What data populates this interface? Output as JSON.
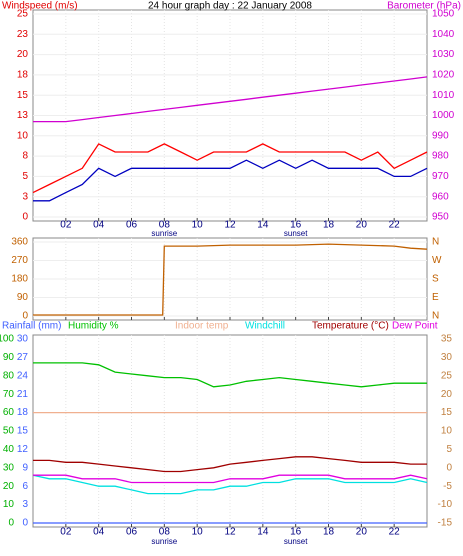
{
  "chart_data": [
    {
      "type": "line",
      "title": "24 hour graph day : 22 January 2008",
      "ylabel": "Windspeed (m/s)",
      "y2label": "Barometer (hPa)",
      "ycolor": "#e00000",
      "y2color": "#d000d0",
      "x": [
        0,
        1,
        2,
        3,
        4,
        5,
        6,
        7,
        8,
        9,
        10,
        11,
        12,
        13,
        14,
        15,
        16,
        17,
        18,
        19,
        20,
        21,
        22,
        23,
        24
      ],
      "xlim": [
        0,
        24
      ],
      "xticks": [
        {
          "value": 2,
          "label": "02"
        },
        {
          "value": 4,
          "label": "04"
        },
        {
          "value": 6,
          "label": "06"
        },
        {
          "value": 8,
          "label": "08"
        },
        {
          "value": 10,
          "label": "10"
        },
        {
          "value": 12,
          "label": "12"
        },
        {
          "value": 14,
          "label": "14"
        },
        {
          "value": 16,
          "label": "16"
        },
        {
          "value": 18,
          "label": "18"
        },
        {
          "value": 20,
          "label": "20"
        },
        {
          "value": 22,
          "label": "22"
        }
      ],
      "ylim": [
        0,
        25
      ],
      "yticks": [
        0,
        {
          "value": 2.5,
          "label": "3"
        },
        5,
        {
          "value": 7.5,
          "label": "8"
        },
        10,
        {
          "value": 12.5,
          "label": "13"
        },
        15,
        {
          "value": 17.5,
          "label": "18"
        },
        20,
        {
          "value": 22.5,
          "label": "23"
        },
        25
      ],
      "y2lim": [
        950,
        1050
      ],
      "y2ticks": [
        950,
        960,
        970,
        980,
        990,
        1000,
        1010,
        1020,
        1030,
        1040,
        1050
      ],
      "annotations": [
        {
          "text": "sunrise",
          "x": 8
        },
        {
          "text": "sunset",
          "x": 16
        }
      ],
      "grid": true,
      "series": [
        {
          "color": "#ff0000",
          "values": [
            3,
            4,
            5,
            6,
            9,
            8,
            8,
            8,
            9,
            8,
            7,
            8,
            8,
            8,
            9,
            8,
            8,
            8,
            8,
            8,
            7,
            8,
            6,
            7,
            8
          ]
        },
        {
          "color": "#0000c0",
          "values": [
            2,
            2,
            3,
            4,
            6,
            5,
            6,
            6,
            6,
            6,
            6,
            6,
            6,
            7,
            6,
            7,
            6,
            7,
            6,
            6,
            6,
            6,
            5,
            5,
            6
          ]
        },
        {
          "color": "#d000d0",
          "axis": "y2",
          "values": [
            997,
            997,
            997,
            998,
            999,
            1000,
            1001,
            1002,
            1003,
            1004,
            1005,
            1006,
            1007,
            1008,
            1009,
            1010,
            1011,
            1012,
            1013,
            1014,
            1015,
            1016,
            1017,
            1018,
            1019
          ]
        }
      ]
    },
    {
      "type": "line",
      "ycolor": "#c06000",
      "y2color": "#c06000",
      "x": [
        0,
        2,
        4,
        6,
        7.9,
        8,
        10,
        12,
        14,
        16,
        18,
        20,
        22,
        23,
        24
      ],
      "xlim": [
        0,
        24
      ],
      "xticks": [
        2,
        4,
        6,
        8,
        10,
        12,
        14,
        16,
        18,
        20,
        22
      ],
      "ylim": [
        0,
        360
      ],
      "yticks": [
        0,
        90,
        180,
        270,
        360
      ],
      "y2lim": [
        0,
        360
      ],
      "y2ticks": [
        {
          "value": 0,
          "label": "N"
        },
        {
          "value": 90,
          "label": "E"
        },
        {
          "value": 180,
          "label": "S"
        },
        {
          "value": 270,
          "label": "W"
        },
        {
          "value": 360,
          "label": "N"
        }
      ],
      "grid": true,
      "series": [
        {
          "color": "#c06000",
          "values": [
            5,
            5,
            5,
            5,
            5,
            340,
            340,
            345,
            345,
            345,
            350,
            345,
            340,
            330,
            325
          ]
        }
      ]
    },
    {
      "type": "line",
      "ycolor": "#00b000",
      "y2color": "#c08040",
      "y3color": "#4060ff",
      "x": [
        0,
        1,
        2,
        3,
        4,
        5,
        6,
        7,
        8,
        9,
        10,
        11,
        12,
        13,
        14,
        15,
        16,
        17,
        18,
        19,
        20,
        21,
        22,
        23,
        24
      ],
      "xlim": [
        0,
        24
      ],
      "xticks": [
        {
          "value": 2,
          "label": "02"
        },
        {
          "value": 4,
          "label": "04"
        },
        {
          "value": 6,
          "label": "06"
        },
        {
          "value": 8,
          "label": "08"
        },
        {
          "value": 10,
          "label": "10"
        },
        {
          "value": 12,
          "label": "12"
        },
        {
          "value": 14,
          "label": "14"
        },
        {
          "value": 16,
          "label": "16"
        },
        {
          "value": 18,
          "label": "18"
        },
        {
          "value": 20,
          "label": "20"
        },
        {
          "value": 22,
          "label": "22"
        }
      ],
      "ylim": [
        0,
        100
      ],
      "yticks": [
        0,
        10,
        20,
        30,
        40,
        50,
        60,
        70,
        80,
        90,
        100
      ],
      "y2lim": [
        -15,
        35
      ],
      "y2ticks": [
        -15,
        -10,
        -5,
        0,
        5,
        10,
        15,
        20,
        25,
        30,
        35
      ],
      "y3lim": [
        0,
        30
      ],
      "y3ticks": [
        0,
        3,
        6,
        9,
        12,
        15,
        18,
        21,
        24,
        27,
        30
      ],
      "annotations": [
        {
          "text": "sunrise",
          "x": 8
        },
        {
          "text": "sunset",
          "x": 16
        }
      ],
      "grid": true,
      "series": [
        {
          "name": "Rainfall (mm)",
          "color": "#4060ff",
          "axis": "y3",
          "values": [
            0,
            0,
            0,
            0,
            0,
            0,
            0,
            0,
            0,
            0,
            0,
            0,
            0,
            0,
            0,
            0,
            0,
            0,
            0,
            0,
            0,
            0,
            0,
            0,
            0
          ]
        },
        {
          "name": "Humidity %",
          "color": "#00c000",
          "values": [
            87,
            87,
            87,
            87,
            86,
            82,
            81,
            80,
            79,
            79,
            78,
            74,
            75,
            77,
            78,
            79,
            78,
            77,
            76,
            75,
            74,
            75,
            76,
            76,
            76
          ]
        },
        {
          "name": "Indoor temp",
          "color": "#f0b090",
          "axis": "y2",
          "values": [
            15,
            15,
            15,
            15,
            15,
            15,
            15,
            15,
            15,
            15,
            15,
            15,
            15,
            15,
            15,
            15,
            15,
            15,
            15,
            15,
            15,
            15,
            15,
            15,
            15
          ]
        },
        {
          "name": "Windchill",
          "color": "#00e0e0",
          "axis": "y2",
          "values": [
            -2,
            -3,
            -3,
            -4,
            -5,
            -5,
            -6,
            -7,
            -7,
            -7,
            -6,
            -6,
            -5,
            -5,
            -4,
            -4,
            -3,
            -3,
            -3,
            -4,
            -4,
            -4,
            -4,
            -3,
            -4
          ]
        },
        {
          "name": "Temperature (°C)",
          "color": "#a00000",
          "axis": "y2",
          "values": [
            2,
            2,
            1.5,
            1.5,
            1,
            0.5,
            0,
            -0.5,
            -1,
            -1,
            -0.5,
            0,
            1,
            1.5,
            2,
            2.5,
            3,
            3,
            2.5,
            2,
            1.5,
            1.5,
            1.5,
            1,
            1
          ]
        },
        {
          "name": "Dew Point",
          "color": "#e000e0",
          "axis": "y2",
          "values": [
            -2,
            -2,
            -2,
            -3,
            -3,
            -3,
            -4,
            -4,
            -4,
            -4,
            -4,
            -4,
            -3,
            -3,
            -3,
            -2,
            -2,
            -2,
            -2,
            -3,
            -3,
            -3,
            -3,
            -2,
            -3
          ]
        }
      ]
    }
  ]
}
